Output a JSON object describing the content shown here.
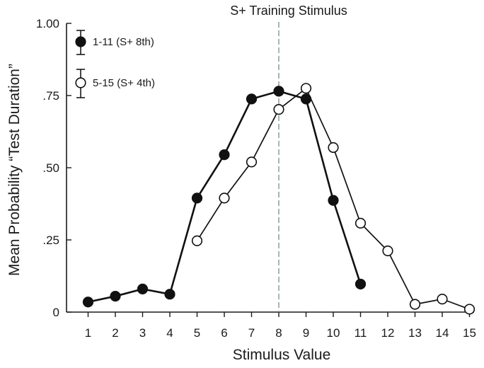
{
  "chart_data": {
    "type": "line",
    "xlabel": "Stimulus Value",
    "ylabel": "Mean Probability “Test Duration”",
    "xlim": [
      0.3,
      15.6
    ],
    "ylim": [
      0,
      1.0
    ],
    "x_ticks": [
      "1",
      "2",
      "3",
      "4",
      "5",
      "6",
      "7",
      "8",
      "9",
      "10",
      "11",
      "12",
      "13",
      "14",
      "15"
    ],
    "y_ticks": [
      {
        "value": 0,
        "label": "0"
      },
      {
        "value": 0.25,
        "label": ".25"
      },
      {
        "value": 0.5,
        "label": ".50"
      },
      {
        "value": 0.75,
        "label": ".75"
      },
      {
        "value": 1.0,
        "label": "1.00"
      }
    ],
    "grid": false,
    "legend_position": "top-left",
    "reference_line": {
      "x": 8,
      "label": "S+  Training Stimulus",
      "color": "#8fa3a3"
    },
    "series": [
      {
        "name": "1-11 (S+ 8th)",
        "marker": "filled-circle",
        "color": "#111111",
        "x": [
          1,
          2,
          3,
          4,
          5,
          6,
          7,
          8,
          9,
          10,
          11
        ],
        "y": [
          0.035,
          0.055,
          0.08,
          0.062,
          0.395,
          0.545,
          0.738,
          0.765,
          0.738,
          0.387,
          0.097
        ]
      },
      {
        "name": "5-15 (S+ 4th)",
        "marker": "open-circle",
        "color": "#111111",
        "x": [
          5,
          6,
          7,
          8,
          9,
          10,
          11,
          12,
          13,
          14,
          15
        ],
        "y": [
          0.247,
          0.395,
          0.52,
          0.702,
          0.775,
          0.57,
          0.308,
          0.212,
          0.027,
          0.045,
          0.01
        ]
      }
    ]
  }
}
